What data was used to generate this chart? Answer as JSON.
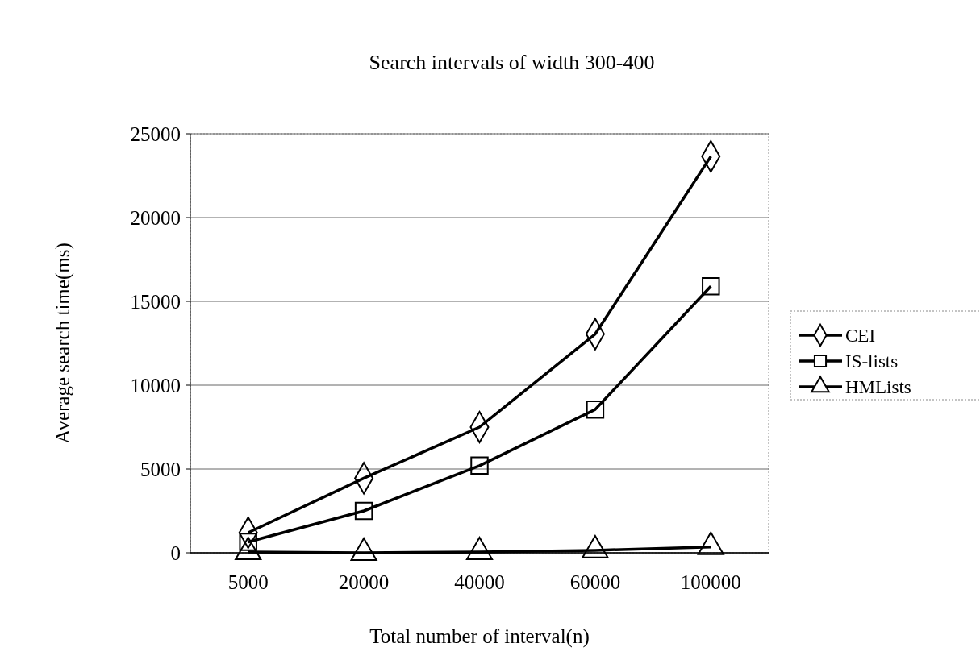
{
  "chart_data": {
    "type": "line",
    "title": "Search intervals of width 300-400",
    "xlabel": "Total number of interval(n)",
    "ylabel": "Average search time(ms)",
    "categories": [
      "5000",
      "20000",
      "40000",
      "60000",
      "100000"
    ],
    "ylim": [
      0,
      25000
    ],
    "yticks": [
      0,
      5000,
      10000,
      15000,
      20000,
      25000
    ],
    "grid": "y",
    "legend": "right",
    "line_style": "solid",
    "series": [
      {
        "name": "CEI",
        "color": "#000000",
        "marker": "diamond",
        "values": [
          1200,
          4450,
          7500,
          13050,
          23650
        ]
      },
      {
        "name": "IS-lists",
        "color": "#000000",
        "marker": "square",
        "values": [
          650,
          2500,
          5200,
          8550,
          15900
        ]
      },
      {
        "name": "HMLists",
        "color": "#000000",
        "marker": "triangle",
        "values": [
          50,
          0,
          50,
          150,
          350
        ]
      }
    ]
  }
}
